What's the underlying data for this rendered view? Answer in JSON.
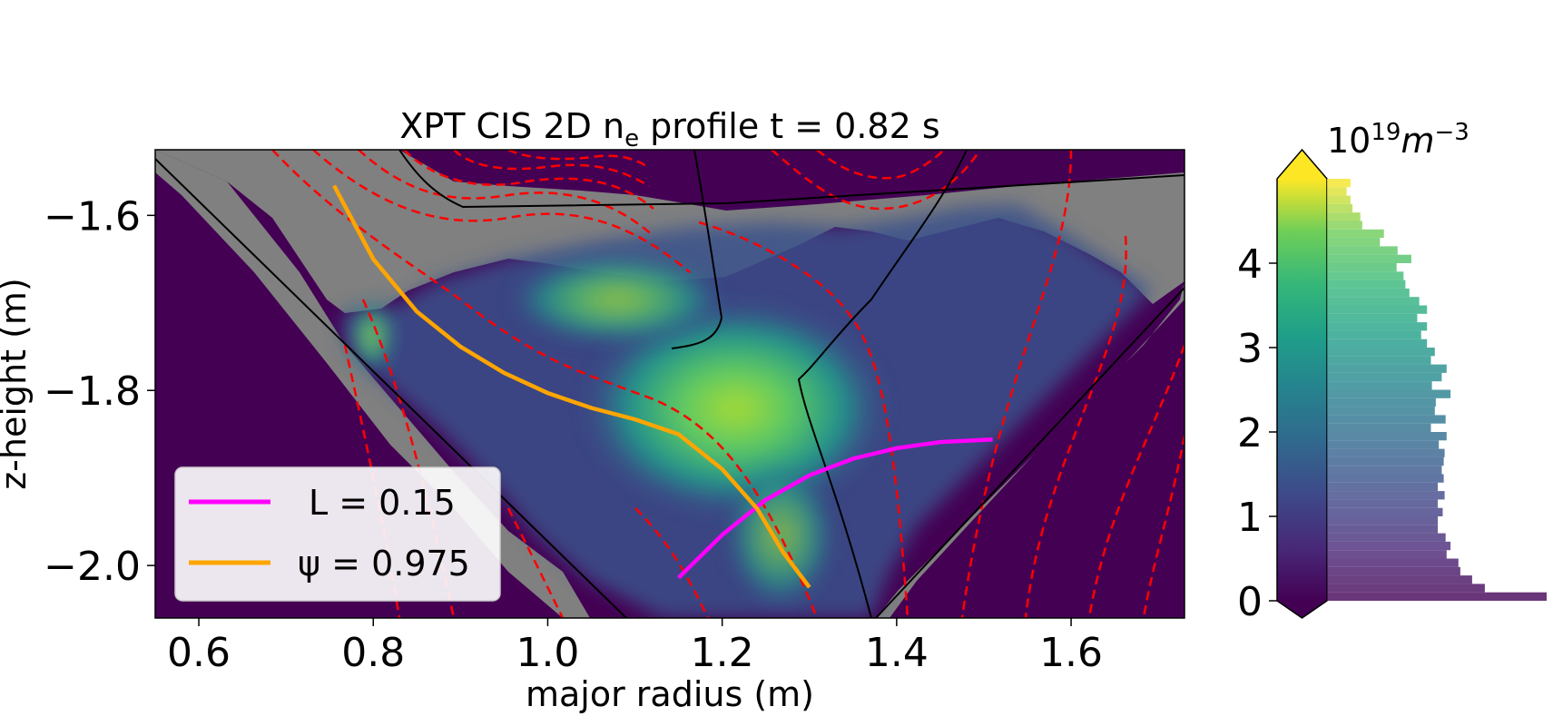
{
  "chart_data": {
    "type": "heatmap",
    "title": "XPT CIS 2D nₑ profile t = 0.82 s",
    "title_parts": {
      "prefix": "XPT CIS 2D n",
      "sub": "e",
      "suffix": " profile t = 0.82 s"
    },
    "xlabel": "major radius (m)",
    "ylabel": "z-height (m)",
    "xlim": [
      0.55,
      1.73
    ],
    "ylim": [
      -2.06,
      -1.525
    ],
    "xticks": [
      0.6,
      0.8,
      1.0,
      1.2,
      1.4,
      1.6
    ],
    "xtick_labels": [
      "0.6",
      "0.8",
      "1.0",
      "1.2",
      "1.4",
      "1.6"
    ],
    "yticks": [
      -1.6,
      -1.8,
      -2.0
    ],
    "ytick_labels": [
      "−1.6",
      "−1.8",
      "−2.0"
    ],
    "colormap": "viridis",
    "colors": {
      "background": "#440154",
      "masked": "#808080",
      "flux_contours": "#ff0000",
      "walls": "#000000"
    },
    "legend": {
      "placement": "lower-left",
      "entries": [
        {
          "label": "L = 0.15",
          "color": "#ff00ff"
        },
        {
          "label": "ψ = 0.975",
          "color": "#ffa500"
        }
      ]
    },
    "series": [
      {
        "label": "L = 0.15",
        "color": "#ff00ff",
        "x": [
          1.15,
          1.2,
          1.25,
          1.3,
          1.35,
          1.4,
          1.45,
          1.51
        ],
        "y": [
          -2.014,
          -1.965,
          -1.925,
          -1.897,
          -1.878,
          -1.866,
          -1.859,
          -1.856
        ]
      },
      {
        "label": "ψ = 0.975",
        "color": "#ffa500",
        "x": [
          0.755,
          0.8,
          0.85,
          0.9,
          0.95,
          1.0,
          1.05,
          1.1,
          1.15,
          1.2,
          1.24,
          1.27,
          1.3
        ],
        "y": [
          -1.566,
          -1.65,
          -1.71,
          -1.75,
          -1.78,
          -1.803,
          -1.82,
          -1.833,
          -1.85,
          -1.89,
          -1.935,
          -1.985,
          -2.025
        ]
      }
    ],
    "colorbar": {
      "label_base": "10",
      "label_exp1": "19",
      "label_unit": "m",
      "label_exp2": "−3",
      "range": [
        0,
        5
      ],
      "ticks": [
        0,
        1,
        2,
        3,
        4
      ],
      "tick_labels": [
        "0",
        "1",
        "2",
        "3",
        "4"
      ],
      "extend": "both"
    },
    "histogram": {
      "bin_width": 0.1,
      "bin_starts": [
        0.0,
        0.1,
        0.2,
        0.3,
        0.4,
        0.5,
        0.6,
        0.7,
        0.8,
        0.9,
        1.0,
        1.1,
        1.2,
        1.3,
        1.4,
        1.5,
        1.6,
        1.7,
        1.8,
        1.9,
        2.0,
        2.1,
        2.2,
        2.3,
        2.4,
        2.5,
        2.6,
        2.7,
        2.8,
        2.9,
        3.0,
        3.1,
        3.2,
        3.3,
        3.4,
        3.5,
        3.6,
        3.7,
        3.8,
        3.9,
        4.0,
        4.1,
        4.2,
        4.3,
        4.4,
        4.5,
        4.6,
        4.7,
        4.8,
        4.9
      ],
      "counts": [
        224,
        161,
        148,
        136,
        134,
        122,
        126,
        121,
        113,
        113,
        118,
        113,
        120,
        113,
        119,
        117,
        119,
        120,
        114,
        122,
        106,
        121,
        110,
        111,
        126,
        107,
        117,
        122,
        106,
        110,
        102,
        96,
        102,
        92,
        102,
        94,
        84,
        80,
        78,
        71,
        86,
        72,
        54,
        58,
        36,
        34,
        26,
        24,
        20,
        24
      ]
    }
  }
}
